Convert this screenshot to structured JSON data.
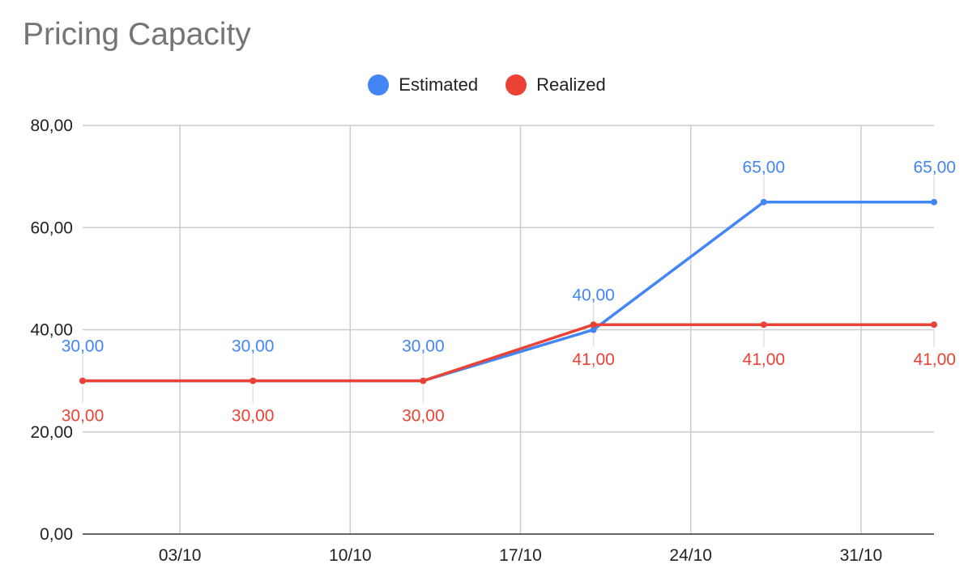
{
  "chart_data": {
    "type": "line",
    "title": "Pricing Capacity",
    "xlabel": "",
    "ylabel": "",
    "x_tick_labels": [
      "03/10",
      "10/10",
      "17/10",
      "24/10",
      "31/10"
    ],
    "x_tick_dates": [
      "2022-10-03",
      "2022-10-10",
      "2022-10-17",
      "2022-10-24",
      "2022-10-31"
    ],
    "x": [
      "2022-09-29",
      "2022-10-06",
      "2022-10-13",
      "2022-10-20",
      "2022-10-27",
      "2022-11-03"
    ],
    "xlim": [
      "2022-09-29",
      "2022-11-03"
    ],
    "ylim": [
      0,
      80
    ],
    "y_ticks": [
      0,
      20,
      40,
      60,
      80
    ],
    "y_tick_labels": [
      "0,00",
      "20,00",
      "40,00",
      "60,00",
      "80,00"
    ],
    "grid": true,
    "legend": "top-center",
    "series": [
      {
        "name": "Estimated",
        "color": "#4285F4",
        "values": [
          30,
          30,
          30,
          40,
          65,
          65
        ],
        "labels": [
          "30,00",
          "30,00",
          "30,00",
          "40,00",
          "65,00",
          "65,00"
        ],
        "label_position": "above"
      },
      {
        "name": "Realized",
        "color": "#EA4335",
        "values": [
          30,
          30,
          30,
          41,
          41,
          41
        ],
        "labels": [
          "30,00",
          "30,00",
          "30,00",
          "41,00",
          "41,00",
          "41,00"
        ],
        "label_position": "below"
      }
    ]
  }
}
